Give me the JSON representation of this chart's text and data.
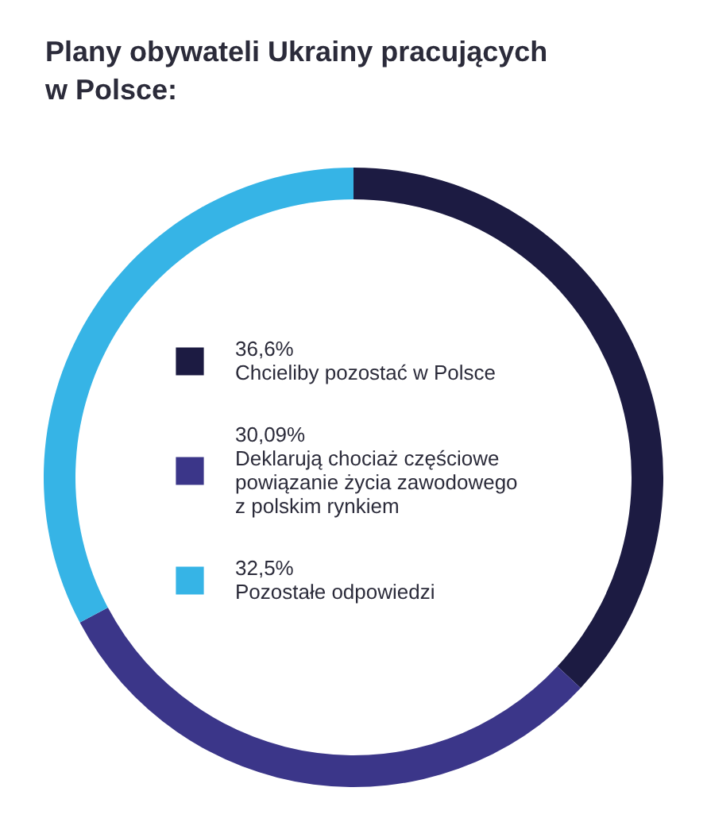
{
  "chart_data": {
    "type": "donut",
    "title": "Plany obywateli Ukrainy pracujących w Polsce:",
    "categories": [
      "Chcieliby pozostać w Polsce",
      "Deklarują chociaż częściowe powiązanie życia zawodowego z polskim rynkiem",
      "Pozostałe odpowiedzi"
    ],
    "values": [
      36.6,
      30.09,
      32.5
    ],
    "value_labels": [
      "36,6%",
      "30,09%",
      "32,5%"
    ],
    "colors": [
      "#1c1b42",
      "#3b3689",
      "#36b4e6"
    ],
    "legend": "center"
  }
}
